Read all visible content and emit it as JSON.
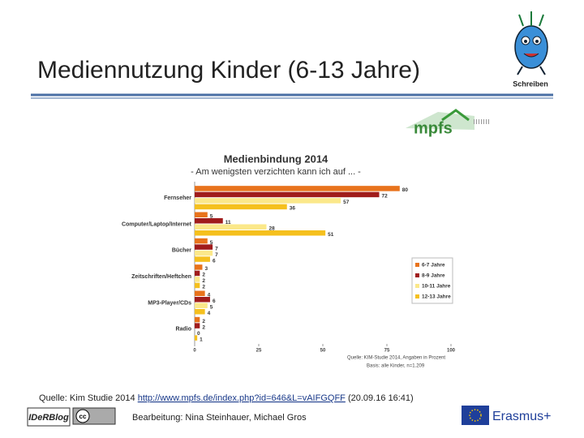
{
  "slide": {
    "title": "Mediennutzung Kinder (6-13 Jahre)",
    "mascot_label": "Schreiben",
    "logo": "mpfs",
    "source_prefix": "Quelle: Kim Studie 2014",
    "source_link": "http://www.mpfs.de/index.php?id=646&L=vAIFGQFF",
    "source_date": "(20.09.16 16:41)",
    "footer_logo": "IDeRBlog",
    "license": "cc",
    "credits": "Bearbeitung: Nina Steinhauer, Michael Gros",
    "funder": "Erasmus+"
  },
  "chart_data": {
    "type": "barh",
    "title": "Medienbindung 2014",
    "subtitle": "- Am wenigsten verzichten kann ich auf ... -",
    "source": "Quelle: KIM-Studie 2014, Angaben in Prozent",
    "base": "Basis: alle Kinder, n=1.209",
    "categories": [
      "Fernseher",
      "Computer/Laptop/Internet",
      "Bücher",
      "Zeitschriften/Heftchen",
      "MP3-Player/CDs",
      "Radio"
    ],
    "series": [
      {
        "name": "6-7 Jahre",
        "color": "#e8731c",
        "values": [
          80,
          5,
          5,
          3,
          4,
          2
        ]
      },
      {
        "name": "8-9 Jahre",
        "color": "#a01c1c",
        "values": [
          72,
          11,
          7,
          2,
          6,
          2
        ]
      },
      {
        "name": "10-11 Jahre",
        "color": "#fbe88a",
        "values": [
          57,
          28,
          7,
          2,
          5,
          0
        ]
      },
      {
        "name": "12-13 Jahre",
        "color": "#f5c01e",
        "values": [
          36,
          51,
          6,
          2,
          4,
          1
        ]
      }
    ],
    "xlim": [
      0,
      100
    ],
    "xticks": [
      0,
      25,
      50,
      75,
      100
    ],
    "legend": "right"
  }
}
